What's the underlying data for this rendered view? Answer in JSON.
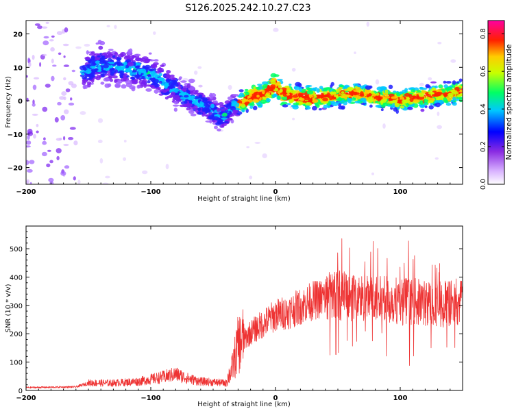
{
  "title": "S126.2025.242.10.27.C23",
  "chart_data": [
    {
      "type": "heatmap",
      "name": "spectrogram",
      "xlabel": "Height of straight line (km)",
      "ylabel": "Frequency (Hz)",
      "xlim": [
        -200,
        150
      ],
      "ylim": [
        -25,
        24
      ],
      "xticks": [
        -200,
        -100,
        0,
        100
      ],
      "yticks": [
        -20,
        -10,
        0,
        10,
        20
      ],
      "ridge": {
        "x": [
          -155,
          -140,
          -125,
          -110,
          -100,
          -90,
          -80,
          -70,
          -60,
          -50,
          -45,
          -40,
          -35,
          -30,
          -20,
          -10,
          -5,
          0,
          5,
          10,
          20,
          30,
          40,
          50,
          60,
          70,
          80,
          90,
          100,
          110,
          120,
          130,
          140,
          150
        ],
        "y": [
          8,
          11,
          10,
          9,
          8,
          6,
          3,
          1,
          -1,
          -3,
          -5,
          -4,
          -2,
          -1,
          1,
          2,
          3,
          5,
          2,
          2,
          1,
          1,
          1,
          2,
          2,
          2,
          1,
          1,
          0,
          1,
          1,
          2,
          2,
          3
        ]
      },
      "colorbar": {
        "label": "Normalized spectral amplitude",
        "range": [
          0.0,
          0.87
        ],
        "ticks": [
          0.0,
          0.2,
          0.4,
          0.6,
          0.8
        ],
        "tick_labels": [
          "0.0",
          "0.2",
          "0.4",
          "0.6",
          "0.8"
        ],
        "colors": [
          "#ffffff",
          "#9b30ff",
          "#0000ff",
          "#00c8ff",
          "#00ff64",
          "#c8ff00",
          "#ffcc00",
          "#ff0000",
          "#ff00a0"
        ]
      }
    },
    {
      "type": "line",
      "name": "snr",
      "xlabel": "Height of straight line (km)",
      "ylabel": "SNR (10 * v/v)",
      "xlim": [
        -200,
        150
      ],
      "ylim": [
        0,
        580
      ],
      "xticks": [
        -200,
        -100,
        0,
        100
      ],
      "yticks": [
        0,
        100,
        200,
        300,
        400,
        500
      ],
      "color": "#ee3333",
      "envelope": {
        "x": [
          -200,
          -160,
          -150,
          -130,
          -110,
          -90,
          -80,
          -70,
          -60,
          -50,
          -40,
          -35,
          -30,
          -20,
          -10,
          0,
          10,
          20,
          30,
          40,
          50,
          60,
          80,
          100,
          120,
          150
        ],
        "y": [
          10,
          12,
          25,
          25,
          30,
          45,
          55,
          40,
          30,
          28,
          25,
          70,
          150,
          200,
          230,
          260,
          270,
          290,
          310,
          320,
          330,
          320,
          310,
          310,
          300,
          300
        ]
      }
    }
  ]
}
